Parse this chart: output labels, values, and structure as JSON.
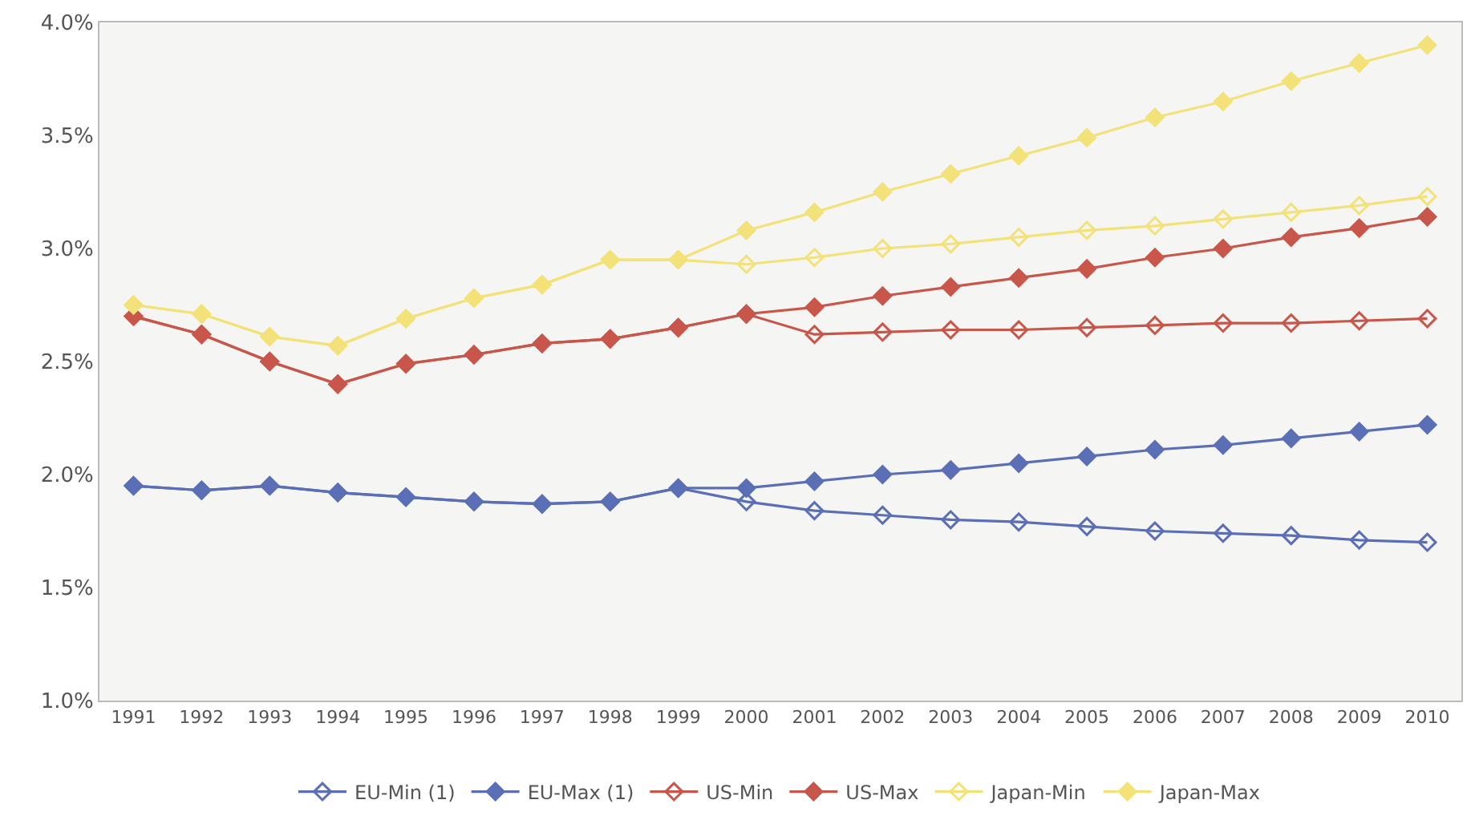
{
  "chart_data": {
    "type": "line",
    "categories": [
      "1991",
      "1992",
      "1993",
      "1994",
      "1995",
      "1996",
      "1997",
      "1998",
      "1999",
      "2000",
      "2001",
      "2002",
      "2003",
      "2004",
      "2005",
      "2006",
      "2007",
      "2008",
      "2009",
      "2010"
    ],
    "ylim": [
      1,
      4
    ],
    "yticks": [
      {
        "value": 1,
        "label": "1.0%"
      },
      {
        "value": 1.5,
        "label": "1.5%"
      },
      {
        "value": 2,
        "label": "2.0%"
      },
      {
        "value": 2.5,
        "label": "2.5%"
      },
      {
        "value": 3,
        "label": "3.0%"
      },
      {
        "value": 3.5,
        "label": "3.5%"
      },
      {
        "value": 4,
        "label": "4.0%"
      }
    ],
    "grid": false,
    "legend": "bottom",
    "marker": "diamond",
    "line_style": "solid",
    "series": [
      {
        "name": "EU-Min (1)",
        "color": "#5a6fb5",
        "marker": "diamond-open",
        "values": [
          1.95,
          1.93,
          1.95,
          1.92,
          1.9,
          1.88,
          1.87,
          1.88,
          1.94,
          1.88,
          1.84,
          1.82,
          1.8,
          1.79,
          1.77,
          1.75,
          1.74,
          1.73,
          1.71,
          1.7
        ]
      },
      {
        "name": "EU-Max (1)",
        "color": "#5a6fb5",
        "values": [
          1.95,
          1.93,
          1.95,
          1.92,
          1.9,
          1.88,
          1.87,
          1.88,
          1.94,
          1.94,
          1.97,
          2.0,
          2.02,
          2.05,
          2.08,
          2.11,
          2.13,
          2.16,
          2.19,
          2.22
        ]
      },
      {
        "name": "US-Min",
        "color": "#c8564a",
        "marker": "diamond-open",
        "values": [
          2.7,
          2.62,
          2.5,
          2.4,
          2.49,
          2.53,
          2.58,
          2.6,
          2.65,
          2.71,
          2.62,
          2.63,
          2.64,
          2.64,
          2.65,
          2.66,
          2.67,
          2.67,
          2.68,
          2.69
        ]
      },
      {
        "name": "US-Max",
        "color": "#c8564a",
        "values": [
          2.7,
          2.62,
          2.5,
          2.4,
          2.49,
          2.53,
          2.58,
          2.6,
          2.65,
          2.71,
          2.74,
          2.79,
          2.83,
          2.87,
          2.91,
          2.96,
          3.0,
          3.05,
          3.09,
          3.14
        ]
      },
      {
        "name": "Japan-Min",
        "color": "#f3e27a",
        "marker": "diamond-open",
        "values": [
          2.75,
          2.71,
          2.61,
          2.57,
          2.69,
          2.78,
          2.84,
          2.95,
          2.95,
          2.93,
          2.96,
          3.0,
          3.02,
          3.05,
          3.08,
          3.1,
          3.13,
          3.16,
          3.19,
          3.23
        ]
      },
      {
        "name": "Japan-Max",
        "color": "#f3e27a",
        "values": [
          2.75,
          2.71,
          2.61,
          2.57,
          2.69,
          2.78,
          2.84,
          2.95,
          2.95,
          3.08,
          3.16,
          3.25,
          3.33,
          3.41,
          3.49,
          3.58,
          3.65,
          3.74,
          3.82,
          3.9
        ]
      }
    ]
  }
}
